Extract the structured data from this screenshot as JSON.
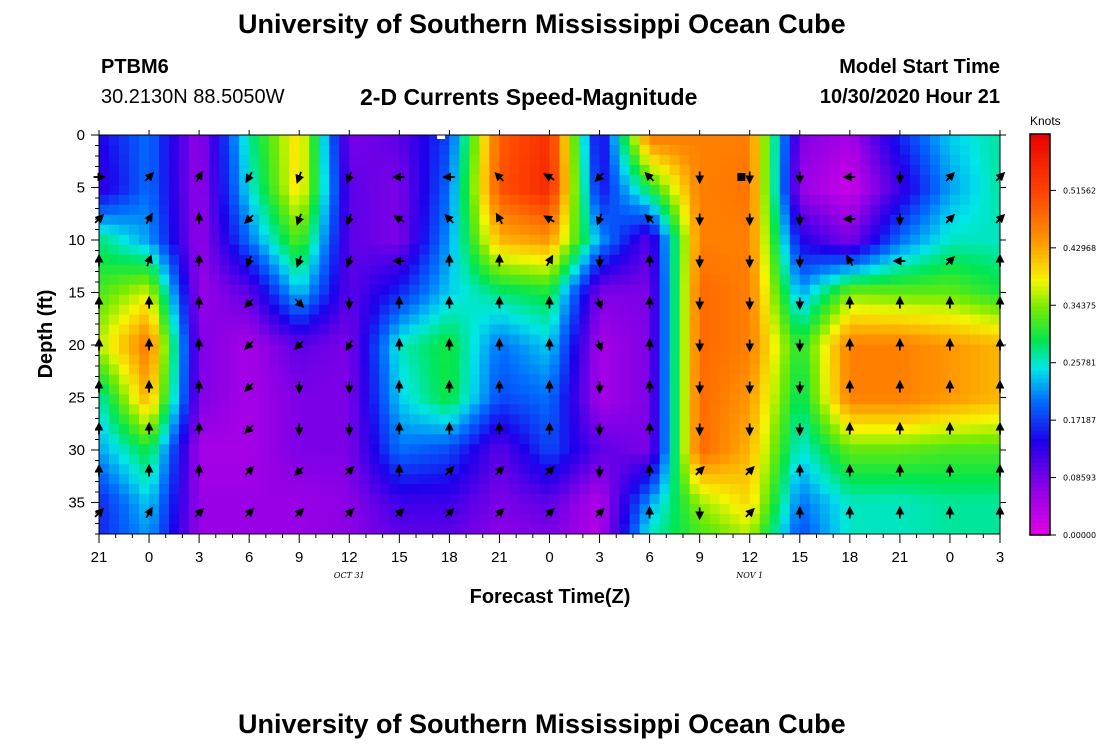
{
  "title": "University of Southern Mississippi Ocean Cube",
  "footer_title": "University of Southern Mississippi Ocean Cube",
  "station": {
    "id": "PTBM6",
    "coords": "30.2130N 88.5050W"
  },
  "model": {
    "label": "Model Start Time",
    "time": "10/30/2020 Hour 21"
  },
  "chart_data": {
    "type": "heatmap",
    "title": "2-D Currents Speed-Magnitude",
    "xlabel": "Forecast Time(Z)",
    "ylabel": "Depth (ft)",
    "x_ticks": [
      "21",
      "0",
      "3",
      "6",
      "9",
      "12",
      "15",
      "18",
      "21",
      "0",
      "3",
      "6",
      "9",
      "12",
      "15",
      "18",
      "21",
      "0",
      "3"
    ],
    "x_range_hours": [
      0,
      54
    ],
    "date_labels": [
      {
        "text": "OCT 31",
        "hour": 15
      },
      {
        "text": "NOV 1",
        "hour": 39
      }
    ],
    "y_ticks": [
      0,
      5,
      10,
      15,
      20,
      25,
      30,
      35
    ],
    "ylim": [
      0,
      38
    ],
    "colorbar": {
      "label": "Knots",
      "ticks": [
        "0.51562",
        "0.42968",
        "0.34375",
        "0.25781",
        "0.17187",
        "0.08593",
        "0.00000"
      ],
      "range": [
        0,
        0.6
      ]
    },
    "speed_field": {
      "columns_hours": [
        0,
        3,
        6,
        9,
        12,
        15,
        18,
        21,
        24,
        27,
        30,
        33,
        36,
        39,
        42,
        45,
        48,
        51,
        54
      ],
      "rows_depth_ft": [
        0,
        5,
        10,
        15,
        20,
        25,
        30,
        35,
        38
      ],
      "values_knots": [
        [
          0.14,
          0.2,
          0.06,
          0.27,
          0.4,
          0.08,
          0.1,
          0.18,
          0.49,
          0.54,
          0.12,
          0.47,
          0.46,
          0.46,
          0.08,
          0.05,
          0.16,
          0.24,
          0.27
        ],
        [
          0.12,
          0.2,
          0.06,
          0.25,
          0.4,
          0.1,
          0.08,
          0.2,
          0.5,
          0.55,
          0.14,
          0.3,
          0.46,
          0.47,
          0.06,
          0.02,
          0.12,
          0.22,
          0.27
        ],
        [
          0.28,
          0.22,
          0.06,
          0.2,
          0.33,
          0.1,
          0.08,
          0.22,
          0.42,
          0.44,
          0.22,
          0.1,
          0.46,
          0.46,
          0.14,
          0.08,
          0.2,
          0.26,
          0.26
        ],
        [
          0.32,
          0.37,
          0.06,
          0.1,
          0.24,
          0.1,
          0.16,
          0.24,
          0.28,
          0.3,
          0.08,
          0.08,
          0.48,
          0.46,
          0.22,
          0.34,
          0.33,
          0.33,
          0.3
        ],
        [
          0.36,
          0.47,
          0.08,
          0.05,
          0.1,
          0.08,
          0.26,
          0.3,
          0.2,
          0.24,
          0.05,
          0.08,
          0.48,
          0.46,
          0.3,
          0.46,
          0.46,
          0.44,
          0.42
        ],
        [
          0.26,
          0.43,
          0.08,
          0.05,
          0.08,
          0.08,
          0.24,
          0.3,
          0.18,
          0.2,
          0.05,
          0.08,
          0.48,
          0.44,
          0.28,
          0.46,
          0.46,
          0.44,
          0.42
        ],
        [
          0.22,
          0.3,
          0.05,
          0.05,
          0.08,
          0.08,
          0.2,
          0.18,
          0.1,
          0.18,
          0.1,
          0.08,
          0.48,
          0.42,
          0.25,
          0.33,
          0.33,
          0.32,
          0.32
        ],
        [
          0.16,
          0.24,
          0.06,
          0.06,
          0.06,
          0.07,
          0.12,
          0.12,
          0.08,
          0.1,
          0.04,
          0.22,
          0.35,
          0.4,
          0.2,
          0.26,
          0.26,
          0.27,
          0.27
        ],
        [
          0.16,
          0.22,
          0.06,
          0.06,
          0.06,
          0.07,
          0.1,
          0.1,
          0.07,
          0.08,
          0.04,
          0.26,
          0.32,
          0.36,
          0.18,
          0.26,
          0.26,
          0.27,
          0.27
        ]
      ]
    },
    "vectors": {
      "hours": [
        0,
        3,
        6,
        9,
        12,
        15,
        18,
        21,
        24,
        27,
        30,
        33,
        36,
        39,
        42,
        45,
        48,
        51,
        54
      ],
      "depths_ft": [
        4,
        8,
        12,
        16,
        20,
        24,
        28,
        32,
        36
      ],
      "directions_deg": [
        [
          90,
          45,
          30,
          210,
          200,
          200,
          270,
          270,
          315,
          300,
          225,
          315,
          180,
          180,
          180,
          270,
          180,
          45,
          45
        ],
        [
          45,
          30,
          0,
          225,
          200,
          200,
          300,
          315,
          330,
          300,
          200,
          315,
          180,
          180,
          180,
          270,
          180,
          45,
          45
        ],
        [
          0,
          20,
          0,
          200,
          200,
          200,
          270,
          0,
          0,
          30,
          180,
          0,
          180,
          180,
          180,
          330,
          270,
          45,
          0
        ],
        [
          0,
          0,
          0,
          225,
          135,
          180,
          0,
          0,
          0,
          0,
          160,
          0,
          180,
          180,
          180,
          0,
          0,
          0,
          0
        ],
        [
          0,
          0,
          0,
          225,
          225,
          210,
          0,
          0,
          0,
          0,
          160,
          0,
          180,
          180,
          180,
          0,
          0,
          0,
          0
        ],
        [
          0,
          0,
          0,
          225,
          180,
          180,
          0,
          0,
          0,
          0,
          180,
          0,
          180,
          180,
          180,
          0,
          0,
          0,
          0
        ],
        [
          0,
          0,
          0,
          225,
          180,
          180,
          0,
          0,
          0,
          0,
          180,
          0,
          180,
          180,
          180,
          0,
          0,
          0,
          0
        ],
        [
          0,
          0,
          0,
          45,
          225,
          45,
          0,
          45,
          45,
          45,
          180,
          0,
          45,
          45,
          0,
          0,
          0,
          0,
          0
        ],
        [
          45,
          30,
          45,
          45,
          45,
          45,
          45,
          45,
          45,
          45,
          45,
          0,
          180,
          45,
          0,
          0,
          0,
          0,
          0
        ]
      ]
    },
    "markers": [
      {
        "hour": 20.5,
        "depth_ft": 0,
        "color": "#ffffff"
      },
      {
        "hour": 38.5,
        "depth_ft": 4,
        "color": "#000000"
      }
    ]
  }
}
